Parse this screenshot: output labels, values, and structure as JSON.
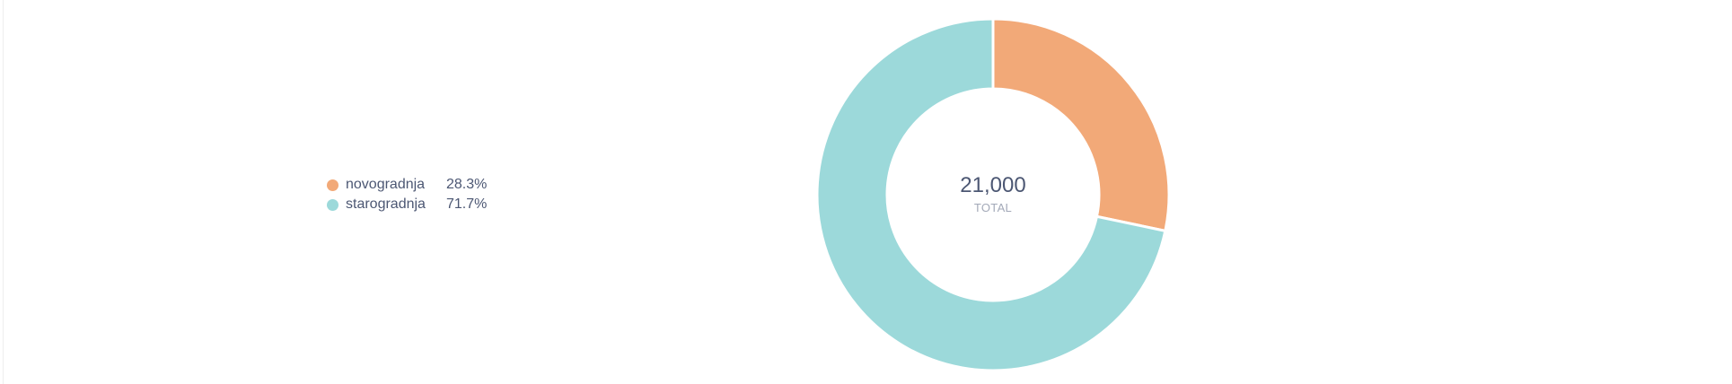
{
  "chart_data": {
    "type": "pie",
    "donut": true,
    "categories": [
      "novogradnja",
      "starogradnja"
    ],
    "values": [
      28.3,
      71.7
    ],
    "percent_labels": [
      "28.3%",
      "71.7%"
    ],
    "colors": [
      "#f2a978",
      "#9cd9da"
    ],
    "center_value": "21,000",
    "center_label": "TOTAL",
    "legend_position": "left"
  }
}
